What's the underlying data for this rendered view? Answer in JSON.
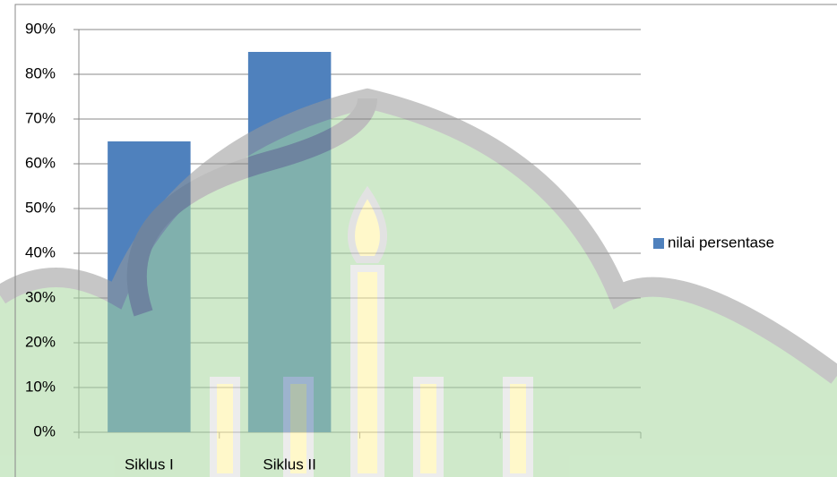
{
  "chart_data": {
    "type": "bar",
    "categories": [
      "Siklus I",
      "Siklus II",
      null,
      null
    ],
    "series": [
      {
        "name": "nilai persentase",
        "color": "#4f81bd",
        "values": [
          65,
          85,
          null,
          null
        ]
      }
    ],
    "ylim": [
      0,
      90
    ],
    "yticks": [
      {
        "value": 0,
        "label": "0%"
      },
      {
        "value": 10,
        "label": "10%"
      },
      {
        "value": 20,
        "label": "20%"
      },
      {
        "value": 30,
        "label": "30%"
      },
      {
        "value": 40,
        "label": "40%"
      },
      {
        "value": 50,
        "label": "50%"
      },
      {
        "value": 60,
        "label": "60%"
      },
      {
        "value": 70,
        "label": "70%"
      },
      {
        "value": 80,
        "label": "80%"
      },
      {
        "value": 90,
        "label": "90%"
      }
    ],
    "grid": true,
    "legend": "right"
  }
}
